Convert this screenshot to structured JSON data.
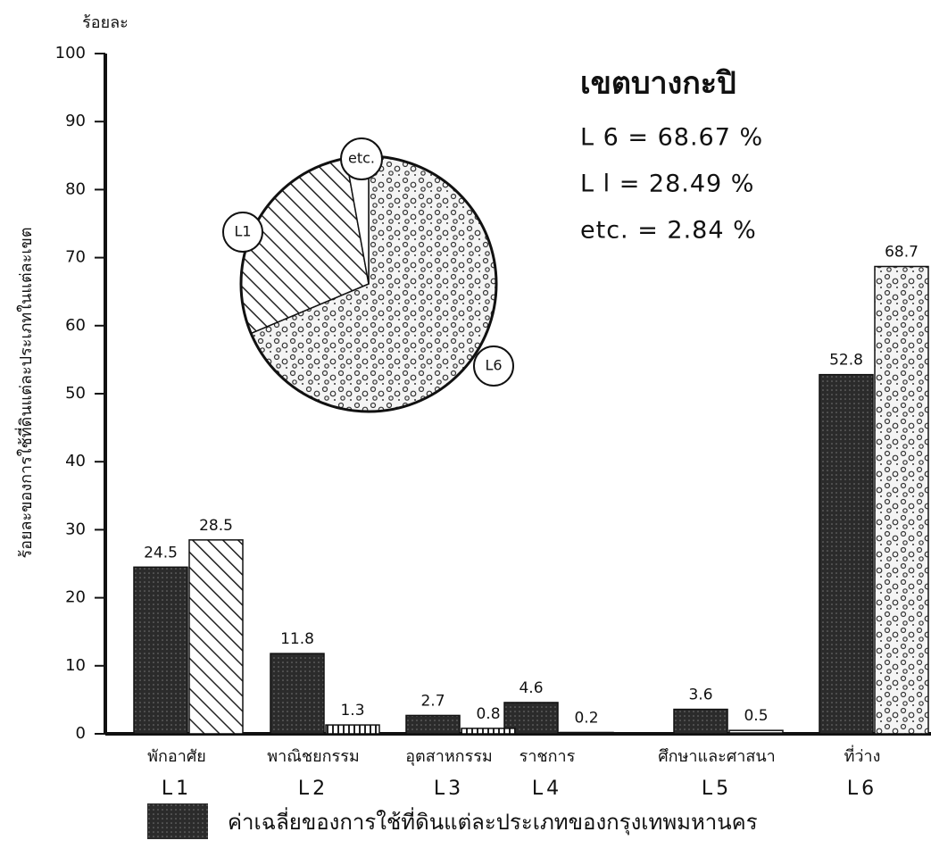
{
  "chart_data": [
    {
      "type": "bar",
      "y_label": "ร้อยละ",
      "y_axis_title": "ร้อยละของการใช้ที่ดินแต่ละประเภทในแต่ละเขต",
      "categories": [
        "พักอาศัย",
        "พาณิชยกรรม",
        "อุตสาหกรรม",
        "ราชการ",
        "ศึกษาและศาสนา",
        "ที่ว่าง"
      ],
      "category_codes": [
        "L1",
        "L2",
        "L3",
        "L4",
        "L5",
        "L6"
      ],
      "series": [
        {
          "name": "ค่าเฉลี่ยของการใช้ที่ดินแต่ละประเภทของกรุงเทพมหานคร",
          "color": "#2b2b2b",
          "values": [
            24.5,
            11.8,
            2.7,
            4.6,
            3.6,
            52.8
          ]
        },
        {
          "color": "#ffffff",
          "patterns": [
            "diagonal",
            "vertical",
            "vertical",
            "horizontal",
            "horizontal",
            "speckle"
          ],
          "values": [
            28.5,
            1.3,
            0.8,
            0.2,
            0.5,
            68.7
          ]
        }
      ],
      "ylim": [
        0,
        100
      ],
      "yticks": [
        0,
        10,
        20,
        30,
        40,
        50,
        60,
        70,
        80,
        90,
        100
      ]
    },
    {
      "type": "pie",
      "title": "เขตบางกะปิ",
      "labels": [
        "L6",
        "L1",
        "etc."
      ],
      "values": [
        68.67,
        28.49,
        2.84
      ],
      "patterns": [
        "speckle",
        "diagonal",
        "blank"
      ],
      "annotations": [
        "L 6 = 68.67 %",
        "L l = 28.49 %",
        "etc. = 2.84 %"
      ]
    }
  ]
}
